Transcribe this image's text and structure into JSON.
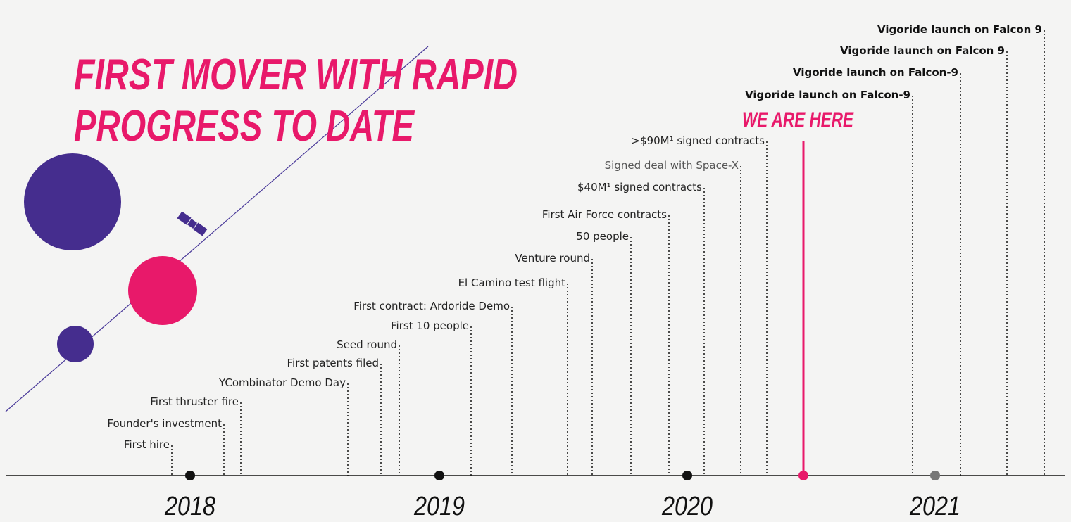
{
  "title": [
    "FIRST MOVER WITH RAPID",
    "PROGRESS TO DATE"
  ],
  "marker": "WE ARE HERE",
  "years": [
    "2018",
    "2019",
    "2020",
    "2021"
  ],
  "events": [
    {
      "label": "First hire"
    },
    {
      "label": "Founder's investment"
    },
    {
      "label": "First thruster fire"
    },
    {
      "label": "YCombinator Demo Day"
    },
    {
      "label": "First patents filed"
    },
    {
      "label": "Seed round"
    },
    {
      "label": "First 10 people"
    },
    {
      "label": "First contract: Ardoride Demo"
    },
    {
      "label": "El Camino test flight"
    },
    {
      "label": "Venture round"
    },
    {
      "label": "50 people"
    },
    {
      "label": "First Air Force contracts"
    },
    {
      "label": "$40M¹ signed contracts"
    },
    {
      "label": "Signed deal with Space-X"
    },
    {
      "label": ">$90M¹ signed contracts"
    },
    {
      "label": "Vigoride launch on Falcon-9"
    },
    {
      "label": "Vigoride launch on Falcon-9"
    },
    {
      "label": "Vigoride launch on Falcon 9"
    },
    {
      "label": "Vigoride launch on Falcon 9"
    }
  ]
}
